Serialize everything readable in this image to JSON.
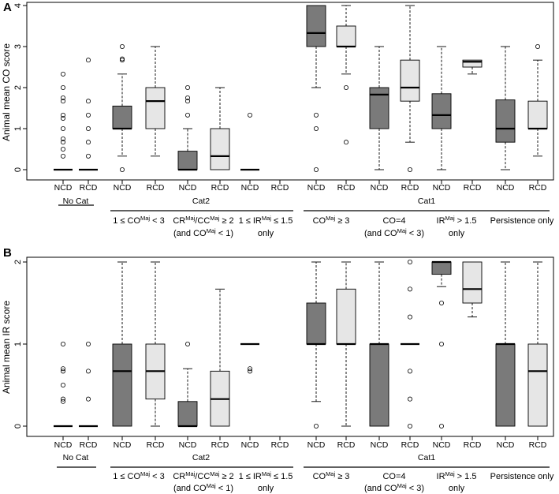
{
  "colors": {
    "NCD": "#7a7a7a",
    "RCD": "#e6e6e6"
  },
  "group_row": {
    "no_cat": "No Cat",
    "cat2": "Cat2",
    "cat1": "Cat1"
  },
  "subgroups": [
    {
      "line1": "1 ≤ CO",
      "sup1": "Maj",
      "rest1": " < 3",
      "line2": ""
    },
    {
      "line1": "CR",
      "sup1": "Maj",
      "rest1": "/CC",
      "sup1b": "Maj",
      "rest1b": " ≥ 2",
      "line2": "(and CO",
      "sup2": "Maj",
      "rest2": " < 1)"
    },
    {
      "line1": "1 ≤ IR",
      "sup1": "Maj",
      "rest1": " ≤ 1.5",
      "line2": "only"
    },
    {
      "line1": "CO",
      "sup1": "Maj",
      "rest1": " ≥ 3",
      "line2": ""
    },
    {
      "line1": "CO=4",
      "line2": "(and CO",
      "sup2": "Maj",
      "rest2": " < 3)"
    },
    {
      "line1": "IR",
      "sup1": "Maj",
      "rest1": " > 1.5",
      "line2": "only"
    },
    {
      "line1": "Persistence only",
      "line2": ""
    }
  ],
  "chart_data": [
    {
      "type": "boxplot",
      "panel": "A",
      "ylabel": "Animal mean CO score",
      "ylim": [
        0,
        4
      ],
      "yticks": [
        0,
        1,
        2,
        3,
        4
      ],
      "categories": [
        "NCD",
        "RCD",
        "NCD",
        "RCD",
        "NCD",
        "RCD",
        "NCD",
        "RCD",
        "NCD",
        "RCD",
        "NCD",
        "RCD",
        "NCD",
        "RCD",
        "NCD",
        "RCD"
      ],
      "boxes": [
        {
          "group": "No Cat",
          "diet": "NCD",
          "whisker_low": 0,
          "q1": 0,
          "median": 0,
          "q3": 0,
          "whisker_high": 0,
          "outliers": [
            0.33,
            0.5,
            0.67,
            0.75,
            1.0,
            1.25,
            1.33,
            1.67,
            1.75,
            2.0,
            2.33
          ]
        },
        {
          "group": "No Cat",
          "diet": "RCD",
          "whisker_low": 0,
          "q1": 0,
          "median": 0,
          "q3": 0,
          "whisker_high": 0,
          "outliers": [
            0.33,
            0.67,
            1.0,
            1.33,
            1.67,
            2.67
          ]
        },
        {
          "group": "1 ≤ CO Maj < 3",
          "diet": "NCD",
          "whisker_low": 0.33,
          "q1": 1.0,
          "median": 1.0,
          "q3": 1.55,
          "whisker_high": 2.33,
          "outliers": [
            0,
            2.67,
            2.7,
            3.0
          ]
        },
        {
          "group": "1 ≤ CO Maj < 3",
          "diet": "RCD",
          "whisker_low": 0.33,
          "q1": 1.0,
          "median": 1.67,
          "q3": 2.0,
          "whisker_high": 3.0,
          "outliers": []
        },
        {
          "group": "CR Maj/CC Maj ≥ 2 (and CO Maj < 1)",
          "diet": "NCD",
          "whisker_low": 0,
          "q1": 0,
          "median": 0.0,
          "q3": 0.45,
          "whisker_high": 1.0,
          "outliers": [
            1.33,
            1.67,
            1.75,
            2.0
          ]
        },
        {
          "group": "CR Maj/CC Maj ≥ 2 (and CO Maj < 1)",
          "diet": "RCD",
          "whisker_low": 0,
          "q1": 0,
          "median": 0.33,
          "q3": 1.0,
          "whisker_high": 2.0,
          "outliers": []
        },
        {
          "group": "1 ≤ IR Maj ≤ 1.5 only",
          "diet": "NCD",
          "whisker_low": 0,
          "q1": 0,
          "median": 0,
          "q3": 0,
          "whisker_high": 0,
          "outliers": [
            1.33
          ]
        },
        {
          "group": "1 ≤ IR Maj ≤ 1.5 only",
          "diet": "RCD",
          "empty": true
        },
        {
          "group": "CO Maj ≥ 3",
          "diet": "NCD",
          "whisker_low": 2.0,
          "q1": 3.0,
          "median": 3.33,
          "q3": 4.0,
          "whisker_high": 4.0,
          "outliers": [
            0,
            1.0,
            1.33
          ]
        },
        {
          "group": "CO Maj ≥ 3",
          "diet": "RCD",
          "whisker_low": 2.33,
          "q1": 3.0,
          "median": 3.0,
          "q3": 3.5,
          "whisker_high": 4.0,
          "outliers": [
            0.67,
            2.0
          ]
        },
        {
          "group": "CO=4 (and CO Maj < 3)",
          "diet": "NCD",
          "whisker_low": 0,
          "q1": 1.0,
          "median": 1.83,
          "q3": 2.0,
          "whisker_high": 3.0,
          "outliers": []
        },
        {
          "group": "CO=4 (and CO Maj < 3)",
          "diet": "RCD",
          "whisker_low": 0.67,
          "q1": 1.67,
          "median": 2.0,
          "q3": 2.67,
          "whisker_high": 4.0,
          "outliers": [
            0
          ]
        },
        {
          "group": "IR Maj > 1.5 only",
          "diet": "NCD",
          "whisker_low": 0,
          "q1": 1.0,
          "median": 1.33,
          "q3": 1.85,
          "whisker_high": 3.0,
          "outliers": []
        },
        {
          "group": "IR Maj > 1.5 only",
          "diet": "RCD",
          "whisker_low": 2.33,
          "q1": 2.5,
          "median": 2.63,
          "q3": 2.67,
          "whisker_high": 2.67,
          "outliers": []
        },
        {
          "group": "Persistence only",
          "diet": "NCD",
          "whisker_low": 0,
          "q1": 0.67,
          "median": 1.0,
          "q3": 1.7,
          "whisker_high": 3.0,
          "outliers": []
        },
        {
          "group": "Persistence only",
          "diet": "RCD",
          "whisker_low": 0.33,
          "q1": 1.0,
          "median": 1.0,
          "q3": 1.67,
          "whisker_high": 2.67,
          "outliers": [
            3.0
          ]
        }
      ]
    },
    {
      "type": "boxplot",
      "panel": "B",
      "ylabel": "Animal mean IR score",
      "ylim": [
        0,
        2
      ],
      "yticks": [
        0,
        1,
        2
      ],
      "categories": [
        "NCD",
        "RCD",
        "NCD",
        "RCD",
        "NCD",
        "RCD",
        "NCD",
        "RCD",
        "NCD",
        "RCD",
        "NCD",
        "RCD",
        "NCD",
        "RCD",
        "NCD",
        "RCD"
      ],
      "boxes": [
        {
          "group": "No Cat",
          "diet": "NCD",
          "whisker_low": 0,
          "q1": 0,
          "median": 0,
          "q3": 0,
          "whisker_high": 0,
          "outliers": [
            0.3,
            0.33,
            0.5,
            0.67,
            0.7,
            1.0
          ]
        },
        {
          "group": "No Cat",
          "diet": "RCD",
          "whisker_low": 0,
          "q1": 0,
          "median": 0,
          "q3": 0,
          "whisker_high": 0,
          "outliers": [
            0.33,
            0.67,
            1.0
          ]
        },
        {
          "group": "1 ≤ CO Maj < 3",
          "diet": "NCD",
          "whisker_low": 0,
          "q1": 0,
          "median": 0.67,
          "q3": 1.0,
          "whisker_high": 2.0,
          "outliers": []
        },
        {
          "group": "1 ≤ CO Maj < 3",
          "diet": "RCD",
          "whisker_low": 0,
          "q1": 0.33,
          "median": 0.67,
          "q3": 1.0,
          "whisker_high": 2.0,
          "outliers": []
        },
        {
          "group": "CR Maj/CC Maj ≥ 2 (and CO Maj < 1)",
          "diet": "NCD",
          "whisker_low": 0,
          "q1": 0,
          "median": 0.0,
          "q3": 0.3,
          "whisker_high": 0.7,
          "outliers": [
            1.0
          ]
        },
        {
          "group": "CR Maj/CC Maj ≥ 2 (and CO Maj < 1)",
          "diet": "RCD",
          "whisker_low": 0,
          "q1": 0,
          "median": 0.33,
          "q3": 0.67,
          "whisker_high": 1.67,
          "outliers": []
        },
        {
          "group": "1 ≤ IR Maj ≤ 1.5 only",
          "diet": "NCD",
          "whisker_low": 1.0,
          "q1": 1.0,
          "median": 1.0,
          "q3": 1.0,
          "whisker_high": 1.0,
          "outliers": [
            0.67,
            0.7
          ]
        },
        {
          "group": "1 ≤ IR Maj ≤ 1.5 only",
          "diet": "RCD",
          "empty": true
        },
        {
          "group": "CO Maj ≥ 3",
          "diet": "NCD",
          "whisker_low": 0.3,
          "q1": 1.0,
          "median": 1.0,
          "q3": 1.5,
          "whisker_high": 2.0,
          "outliers": [
            0
          ]
        },
        {
          "group": "CO Maj ≥ 3",
          "diet": "RCD",
          "whisker_low": 0,
          "q1": 1.0,
          "median": 1.0,
          "q3": 1.67,
          "whisker_high": 2.0,
          "outliers": []
        },
        {
          "group": "CO=4 (and CO Maj < 3)",
          "diet": "NCD",
          "whisker_low": 0,
          "q1": 0,
          "median": 1.0,
          "q3": 1.0,
          "whisker_high": 2.0,
          "outliers": []
        },
        {
          "group": "CO=4 (and CO Maj < 3)",
          "diet": "RCD",
          "whisker_low": 1.0,
          "q1": 1.0,
          "median": 1.0,
          "q3": 1.0,
          "whisker_high": 1.0,
          "outliers": [
            0,
            0.33,
            0.67,
            1.33,
            1.67,
            2.0
          ]
        },
        {
          "group": "IR Maj > 1.5 only",
          "diet": "NCD",
          "whisker_low": 1.7,
          "q1": 1.85,
          "median": 2.0,
          "q3": 2.0,
          "whisker_high": 2.0,
          "outliers": [
            0,
            1.0,
            1.5
          ]
        },
        {
          "group": "IR Maj > 1.5 only",
          "diet": "RCD",
          "whisker_low": 1.33,
          "q1": 1.5,
          "median": 1.67,
          "q3": 2.0,
          "whisker_high": 2.0,
          "outliers": []
        },
        {
          "group": "Persistence only",
          "diet": "NCD",
          "whisker_low": 0,
          "q1": 0,
          "median": 1.0,
          "q3": 1.0,
          "whisker_high": 2.0,
          "outliers": []
        },
        {
          "group": "Persistence only",
          "diet": "RCD",
          "whisker_low": 0,
          "q1": 0,
          "median": 0.67,
          "q3": 1.0,
          "whisker_high": 2.0,
          "outliers": []
        }
      ]
    }
  ]
}
